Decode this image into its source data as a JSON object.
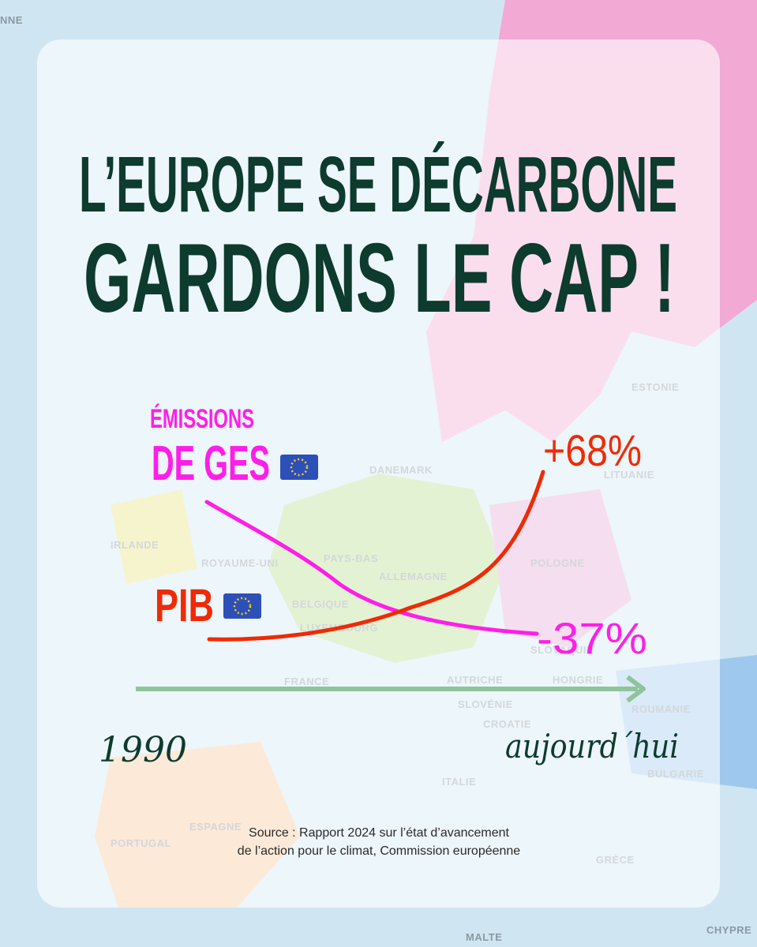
{
  "background_labels": [
    "NNE",
    "IRLANDE",
    "ROYAUME-UNI",
    "PAYS-BAS",
    "ALLEMAGNE",
    "BELGIQUE",
    "LUXEMBOURG",
    "FRANCE",
    "DANEMARK",
    "POLOGNE",
    "ESTONIE",
    "LITUANIE",
    "SLOVAQUIE",
    "AUTRICHE",
    "SLOVÉNIE",
    "CROATIE",
    "HONGRIE",
    "ROUMANIE",
    "BULGARIE",
    "ITALIE",
    "ESPAGNE",
    "PORTUGAL",
    "GRÈCE",
    "MALTE",
    "CHYPRE"
  ],
  "title": [
    "L’EUROPE SE DÉCARBONE",
    "GARDONS LE CAP !"
  ],
  "emissions_label": [
    "ÉMISSIONS",
    "DE GES"
  ],
  "gdp_label": "PIB",
  "gdp_change": "+68%",
  "emissions_change": "-37%",
  "start_year": "1990",
  "end_label": "aujourd´hui",
  "source": [
    "Source : Rapport 2024 sur l’état d’avancement",
    "de l’action pour le climat, Commission européenne"
  ]
}
